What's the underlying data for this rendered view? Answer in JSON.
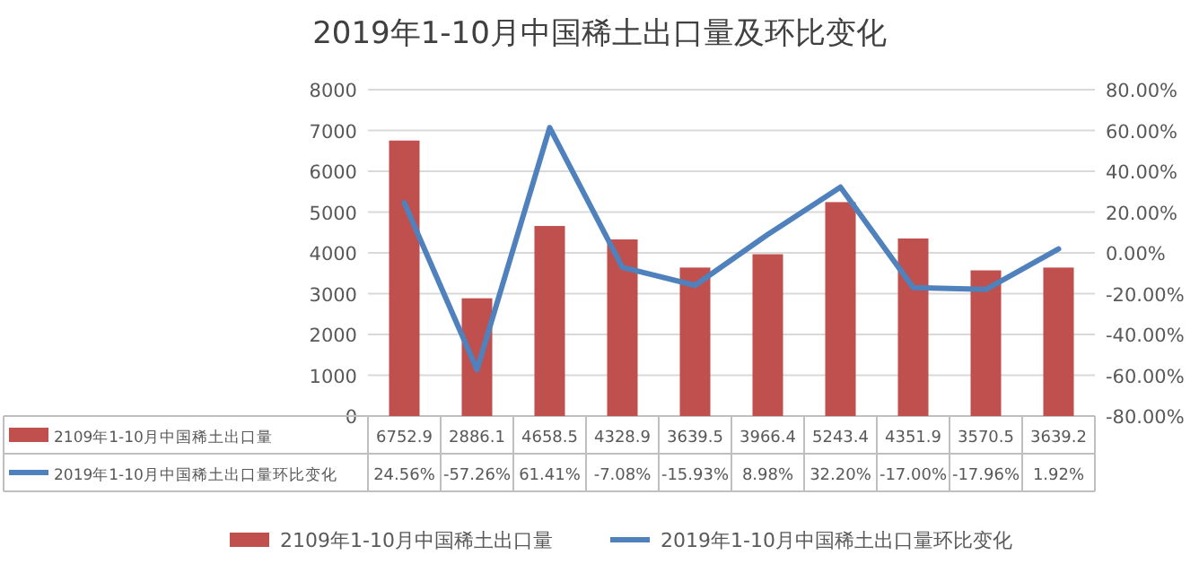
{
  "chart_data": {
    "type": "bar",
    "title": "2019年1-10月中国稀土出口量及环比变化",
    "categories": [
      null,
      null,
      null,
      null,
      null,
      null,
      null,
      null,
      null,
      null
    ],
    "series": [
      {
        "name": "2109年1-10月中国稀土出口量",
        "color": "#c0504d",
        "values": [
          6752.9,
          2886.1,
          4658.5,
          4328.9,
          3639.5,
          3966.4,
          5243.4,
          4351.9,
          3570.5,
          3639.2
        ],
        "value_labels": [
          "6752.9",
          "2886.1",
          "4658.5",
          "4328.9",
          "3639.5",
          "3966.4",
          "5243.4",
          "4351.9",
          "3570.5",
          "3639.2"
        ]
      },
      {
        "name": "2019年1-10月中国稀土出口量环比变化",
        "type": "line",
        "axis": "y2",
        "color": "#4f81bd",
        "values": [
          24.56,
          -57.26,
          61.41,
          -7.08,
          -15.93,
          8.98,
          32.2,
          -17.0,
          -17.96,
          1.92
        ],
        "value_labels": [
          "24.56%",
          "-57.26%",
          "61.41%",
          "-7.08%",
          "-15.93%",
          "8.98%",
          "32.20%",
          "-17.00%",
          "-17.96%",
          "1.92%"
        ]
      }
    ],
    "ylim": [
      0,
      8000
    ],
    "yticks": [
      0,
      1000,
      2000,
      3000,
      4000,
      5000,
      6000,
      7000,
      8000
    ],
    "y2lim": [
      -80,
      80
    ],
    "y2ticks": [
      {
        "value": -80,
        "label": "-80.00%"
      },
      {
        "value": -60,
        "label": "-60.00%"
      },
      {
        "value": -40,
        "label": "-40.00%"
      },
      {
        "value": -20,
        "label": "-20.00%"
      },
      {
        "value": 0,
        "label": "0.00%"
      },
      {
        "value": 20,
        "label": "20.00%"
      },
      {
        "value": 40,
        "label": "40.00%"
      },
      {
        "value": 60,
        "label": "60.00%"
      },
      {
        "value": 80,
        "label": "80.00%"
      }
    ],
    "grid": "y",
    "legend": "bottom",
    "marker": "none",
    "line_style": "solid"
  }
}
